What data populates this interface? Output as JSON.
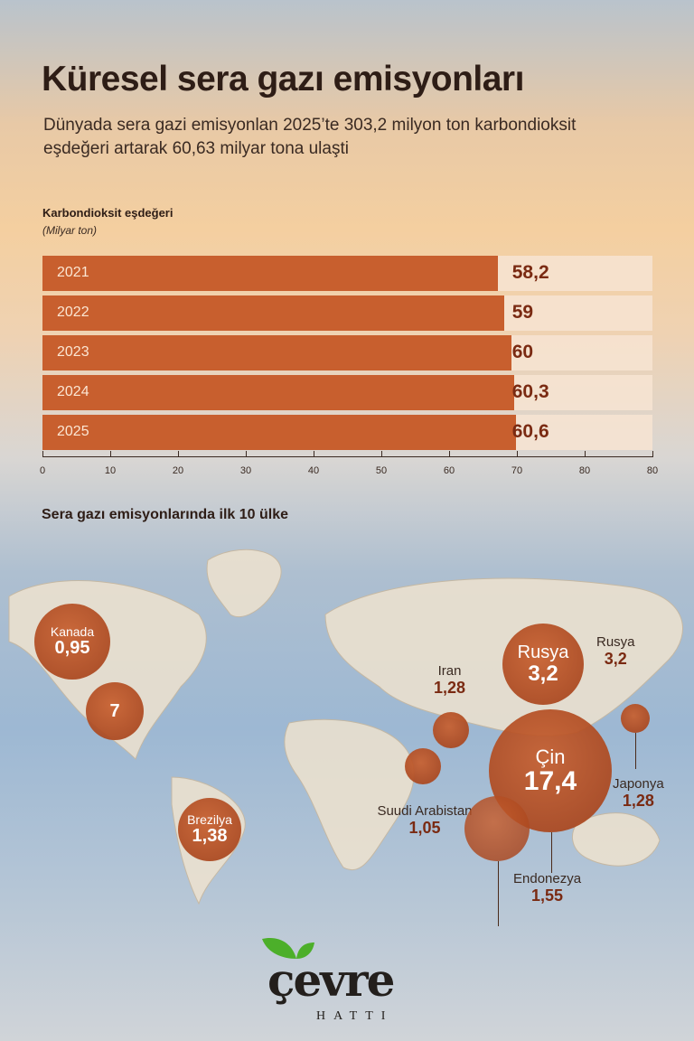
{
  "title": "Küresel sera gazı emisyonları",
  "subtitle": "Dünyada sera gazi emisyonlan 2025’te 303,2 milyon ton karbondioksit eşdeğeri artarak 60,63 milyar tona ulaşti",
  "chart_data": {
    "type": "bar",
    "orientation": "horizontal",
    "ylabel": "Karbondioksit eşdeğeri",
    "unit": "(Milyar ton)",
    "categories": [
      "2021",
      "2022",
      "2023",
      "2024",
      "2025"
    ],
    "values": [
      58.2,
      59,
      60,
      60.3,
      60.6
    ],
    "value_labels": [
      "58,2",
      "59",
      "60",
      "60,3",
      "60,6"
    ],
    "x_tick_labels": [
      "0",
      "10",
      "20",
      "30",
      "40",
      "50",
      "60",
      "70",
      "80",
      "80"
    ],
    "bar_color": "#c85f2e"
  },
  "map": {
    "title": "Sera gazı emisyonlarında ilk 10 ülke",
    "countries": [
      {
        "name": "Kanada",
        "value": "0,95"
      },
      {
        "name": "",
        "value": "7"
      },
      {
        "name": "Brezilya",
        "value": "1,38"
      },
      {
        "name": "Iran",
        "value": "1,28"
      },
      {
        "name": "Suudi Arabistan",
        "value": "1,05"
      },
      {
        "name": "Rusya",
        "value": "3,2"
      },
      {
        "name": "Rusya",
        "value": "3,2"
      },
      {
        "name": "Çin",
        "value": "17,4"
      },
      {
        "name": "Japonya",
        "value": "1,28"
      },
      {
        "name": "Endonezya",
        "value": "1,55"
      }
    ]
  },
  "logo": {
    "name": "çevre",
    "tagline": "HATTI",
    "leaf_color": "#4caf2a"
  }
}
